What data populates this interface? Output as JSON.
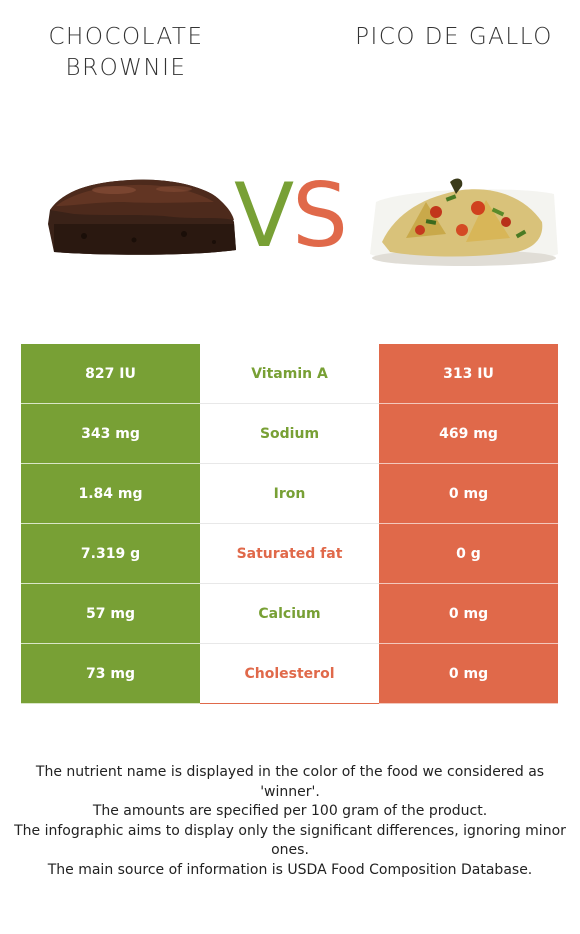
{
  "left_food": {
    "title": "CHOCOLATE BROWNIE"
  },
  "right_food": {
    "title": "PICO DE GALLO"
  },
  "vs": {
    "v": "V",
    "s": "S"
  },
  "colors": {
    "left": "#78a035",
    "right": "#e0694a"
  },
  "rows": [
    {
      "left_value": "827 IU",
      "nutrient": "Vitamin A",
      "right_value": "313 IU",
      "winner": "left"
    },
    {
      "left_value": "343 mg",
      "nutrient": "Sodium",
      "right_value": "469 mg",
      "winner": "left"
    },
    {
      "left_value": "1.84 mg",
      "nutrient": "Iron",
      "right_value": "0 mg",
      "winner": "left"
    },
    {
      "left_value": "7.319 g",
      "nutrient": "Saturated fat",
      "right_value": "0 g",
      "winner": "right"
    },
    {
      "left_value": "57 mg",
      "nutrient": "Calcium",
      "right_value": "0 mg",
      "winner": "left"
    },
    {
      "left_value": "73 mg",
      "nutrient": "Cholesterol",
      "right_value": "0 mg",
      "winner": "right"
    }
  ],
  "footnotes": [
    "The nutrient name is displayed in the color of the food we considered as 'winner'.",
    "The amounts are specified per 100 gram of the product.",
    "The infographic aims to display only the significant differences, ignoring minor ones.",
    "The main source of information is USDA Food Composition Database."
  ]
}
